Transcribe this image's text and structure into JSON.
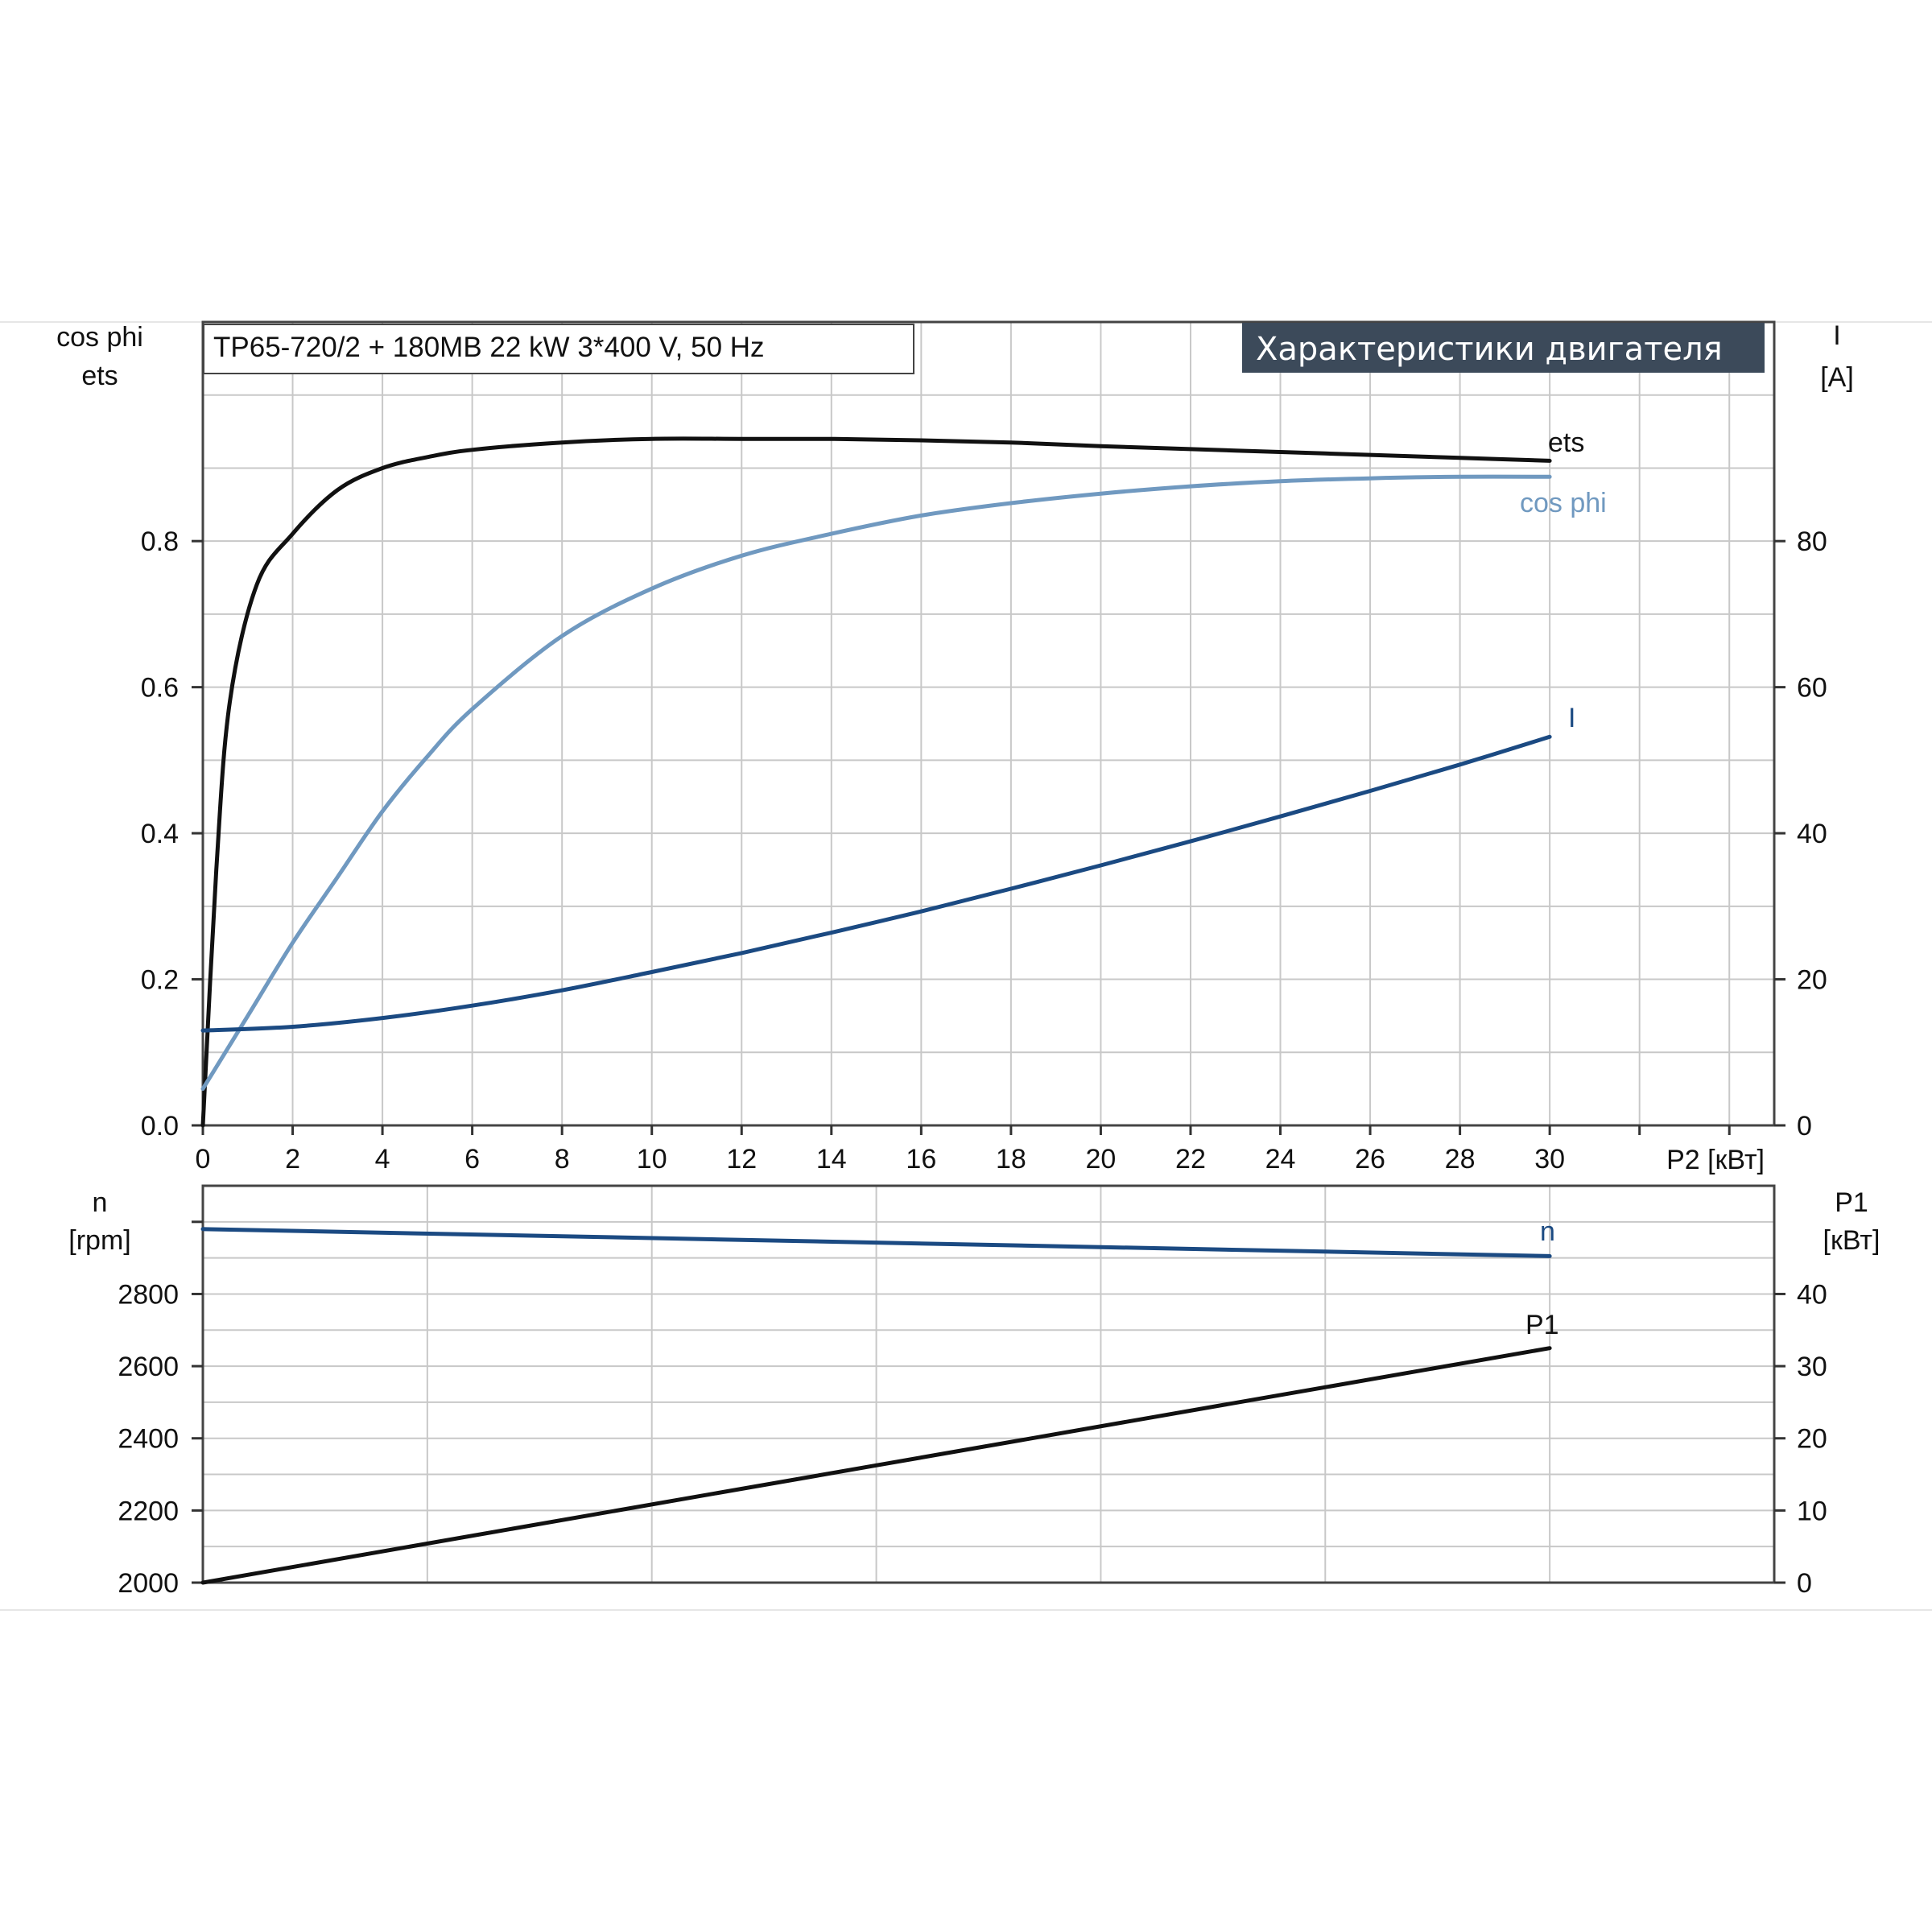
{
  "chart_data": [
    {
      "type": "line",
      "title": "TP65-720/2 + 180MB   22 kW   3*400 V, 50 Hz",
      "badge": "Характеристики двигателя",
      "xlabel": "P2 [кВт]",
      "ylabel_left_1": "cos phi",
      "ylabel_left_2": "ets",
      "ylabel_right_1": "I",
      "ylabel_right_2": "[A]",
      "x_ticks": [
        "0",
        "2",
        "4",
        "6",
        "8",
        "10",
        "12",
        "14",
        "16",
        "18",
        "20",
        "22",
        "24",
        "26",
        "28",
        "30"
      ],
      "y_left_ticks": [
        "0.0",
        "0.2",
        "0.4",
        "0.6",
        "0.8"
      ],
      "y_right_ticks": [
        "0",
        "20",
        "40",
        "60",
        "80"
      ],
      "xlim": [
        0,
        35
      ],
      "ylim_left": [
        0,
        1.1
      ],
      "ylim_right": [
        0,
        110
      ],
      "grid": true,
      "series": [
        {
          "name": "ets",
          "axis": "left",
          "color": "#111111",
          "x": [
            0,
            0.3,
            0.6,
            1.2,
            2,
            3,
            4,
            5,
            6,
            8,
            10,
            12,
            14,
            16,
            18,
            20,
            22,
            24,
            26,
            28,
            30
          ],
          "y": [
            0.0,
            0.35,
            0.58,
            0.74,
            0.81,
            0.87,
            0.9,
            0.915,
            0.925,
            0.935,
            0.94,
            0.94,
            0.94,
            0.938,
            0.935,
            0.93,
            0.926,
            0.922,
            0.918,
            0.914,
            0.91
          ]
        },
        {
          "name": "cos phi",
          "axis": "left",
          "color": "#7099c0",
          "x": [
            0,
            1,
            2,
            3,
            4,
            5,
            6,
            8,
            10,
            12,
            14,
            16,
            18,
            20,
            22,
            24,
            26,
            28,
            30
          ],
          "y": [
            0.05,
            0.15,
            0.25,
            0.34,
            0.43,
            0.505,
            0.57,
            0.67,
            0.735,
            0.78,
            0.81,
            0.835,
            0.852,
            0.865,
            0.875,
            0.882,
            0.886,
            0.888,
            0.888
          ]
        },
        {
          "name": "I",
          "axis": "right",
          "color": "#1b4a82",
          "x": [
            0,
            2,
            4,
            6,
            8,
            10,
            12,
            14,
            16,
            18,
            20,
            22,
            24,
            26,
            28,
            30
          ],
          "y": [
            13,
            13.5,
            14.7,
            16.4,
            18.5,
            21,
            23.6,
            26.4,
            29.3,
            32.4,
            35.6,
            38.9,
            42.3,
            45.8,
            49.4,
            53.2
          ]
        }
      ]
    },
    {
      "type": "line",
      "ylabel_left_1": "n",
      "ylabel_left_2": "[rpm]",
      "ylabel_right_1": "P1",
      "ylabel_right_2": "[кВт]",
      "y_left_ticks": [
        "2000",
        "2200",
        "2400",
        "2600",
        "2800"
      ],
      "y_right_ticks": [
        "0",
        "10",
        "20",
        "30",
        "40"
      ],
      "xlim": [
        0,
        35
      ],
      "ylim_left": [
        2000,
        3100
      ],
      "ylim_right": [
        0,
        55
      ],
      "grid": true,
      "series": [
        {
          "name": "n",
          "axis": "left",
          "color": "#1b4a82",
          "x": [
            0,
            30
          ],
          "y": [
            2980,
            2905
          ]
        },
        {
          "name": "P1",
          "axis": "right",
          "color": "#111111",
          "x": [
            0,
            30
          ],
          "y": [
            0,
            32.5
          ]
        }
      ]
    }
  ]
}
